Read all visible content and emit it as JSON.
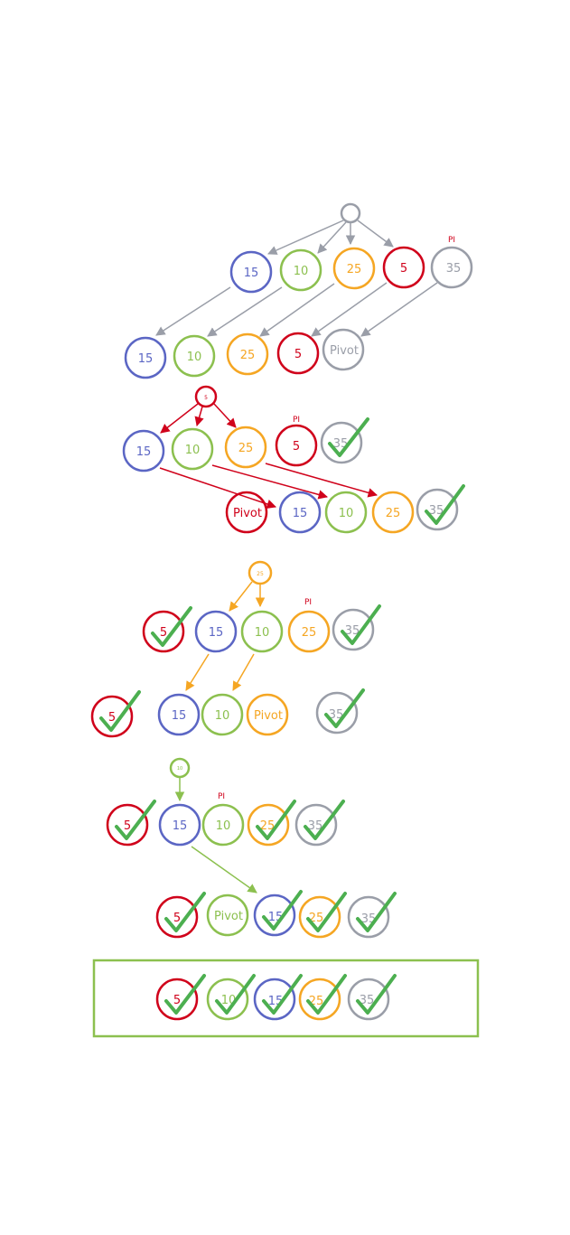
{
  "colors": {
    "gray": "#9a9ea8",
    "blue": "#5b66c4",
    "green": "#8cc04f",
    "orange": "#f5a623",
    "red": "#d0021b",
    "check": "#4caf50",
    "frame": "#8cc04f"
  },
  "labels": {
    "pi": "PI",
    "pivot": "Pivot",
    "n5": "5",
    "n10": "10",
    "n15": "15",
    "n25": "25",
    "n35": "35"
  }
}
